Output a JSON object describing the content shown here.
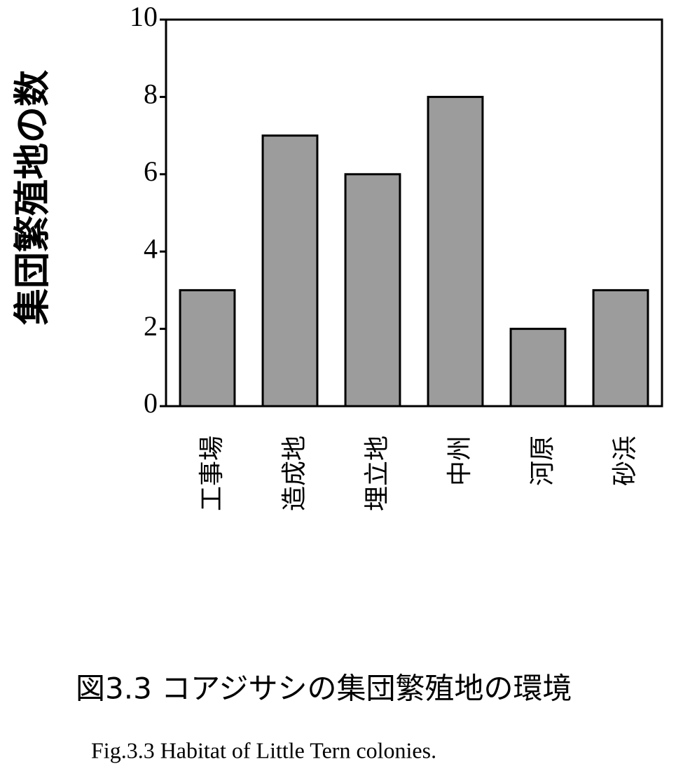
{
  "chart_data": {
    "type": "bar",
    "title": "図3.3 コアジサシの集団繁殖地の環境",
    "subtitle": "Fig.3.3  Habitat of Little Tern colonies.",
    "ylabel": "集団繁殖地の数",
    "categories": [
      "工事場",
      "造成地",
      "埋立地",
      "中州",
      "河原",
      "砂浜"
    ],
    "values": [
      3,
      7,
      6,
      8,
      2,
      3
    ],
    "color": "#9c9c9c",
    "ylim": [
      0,
      10
    ],
    "yticks": [
      0,
      2,
      4,
      6,
      8,
      10
    ],
    "grid": false
  }
}
